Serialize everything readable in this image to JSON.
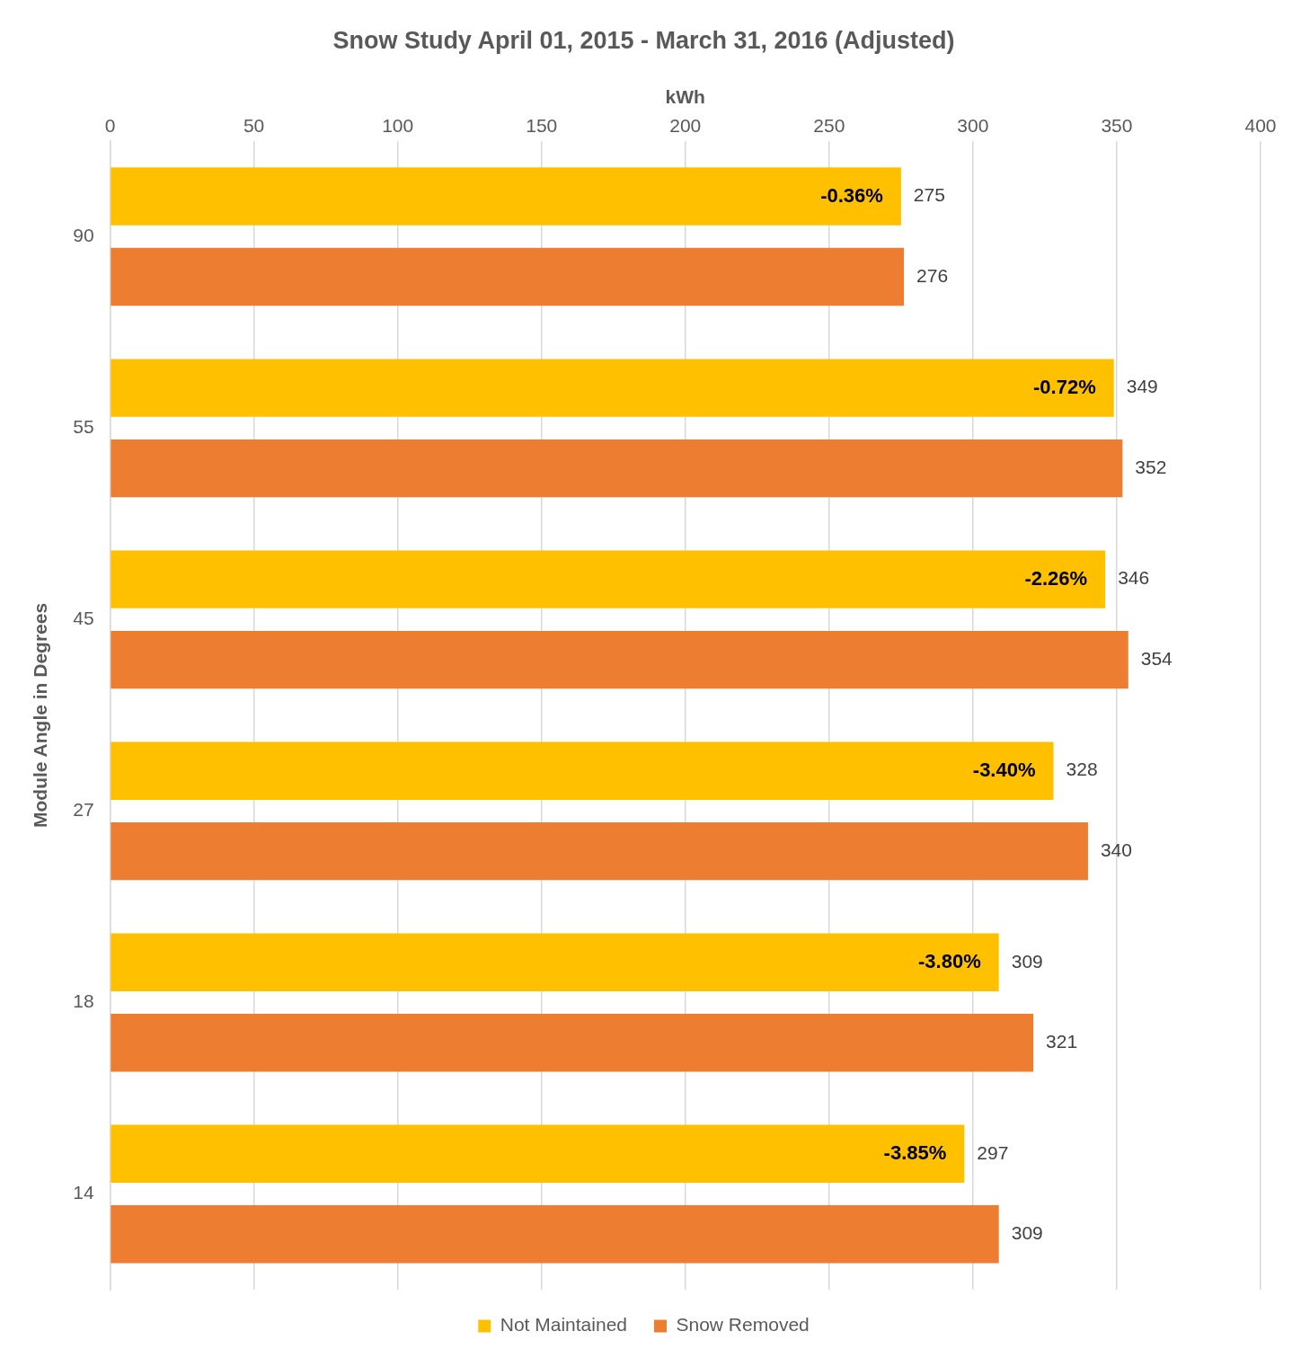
{
  "chart_data": {
    "type": "bar",
    "orientation": "horizontal",
    "title": "Snow Study April 01, 2015 - March 31, 2016 (Adjusted)",
    "xlabel": "kWh",
    "ylabel": "Module Angle in Degrees",
    "categories": [
      "90",
      "55",
      "45",
      "27",
      "18",
      "14"
    ],
    "series": [
      {
        "name": "Not Maintained",
        "color": "#ffc000",
        "values": [
          275,
          349,
          346,
          328,
          309,
          297
        ]
      },
      {
        "name": "Snow Removed",
        "color": "#ed7d31",
        "values": [
          276,
          352,
          354,
          340,
          321,
          309
        ]
      }
    ],
    "xlim": [
      0,
      400
    ],
    "xticks": [
      0,
      50,
      100,
      150,
      200,
      250,
      300,
      350,
      400
    ],
    "grid": "x",
    "legend": "bottom",
    "data_labels": true,
    "annotations": [
      "-0.36%",
      "-0.72%",
      "-2.26%",
      "-3.40%",
      "-3.80%",
      "-3.85%"
    ]
  }
}
